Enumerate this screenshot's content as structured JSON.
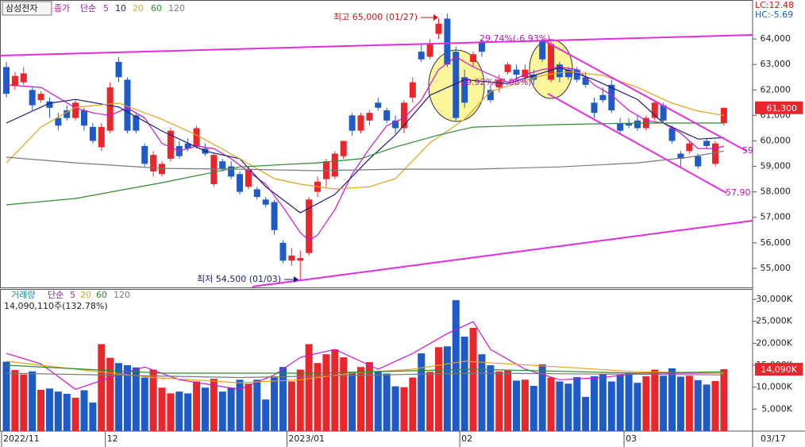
{
  "header": {
    "stock_name": "삼성전자",
    "lc": "LC:12.48",
    "hc": "HC:-5.69"
  },
  "x_axis_end_label": "03/17",
  "chart_data": [
    {
      "type": "candlestick",
      "legend_title": "종가",
      "ma_kind": "단순",
      "categories": [
        "2022/11",
        null,
        null,
        null,
        null,
        null,
        null,
        null,
        null,
        null,
        null,
        null,
        "12",
        null,
        null,
        null,
        null,
        null,
        null,
        null,
        null,
        null,
        null,
        null,
        null,
        null,
        null,
        null,
        null,
        null,
        null,
        null,
        null,
        "2023/01",
        null,
        null,
        null,
        null,
        null,
        null,
        null,
        null,
        null,
        null,
        null,
        null,
        null,
        null,
        null,
        null,
        null,
        null,
        null,
        "02",
        null,
        null,
        null,
        null,
        null,
        null,
        null,
        null,
        null,
        null,
        null,
        null,
        null,
        null,
        null,
        null,
        null,
        null,
        "03",
        null,
        null,
        null,
        null,
        null,
        null,
        null,
        null,
        null,
        null,
        null
      ],
      "open": [
        62900,
        62150,
        62300,
        62000,
        61600,
        61550,
        60900,
        61200,
        60900,
        61200,
        60550,
        59750,
        60400,
        63100,
        62400,
        61000,
        59800,
        58800,
        58700,
        59300,
        59800,
        59900,
        59800,
        59700,
        58300,
        59200,
        59000,
        58700,
        58200,
        58100,
        57700,
        57600,
        56000,
        55300,
        55300,
        55600,
        58000,
        58500,
        58600,
        59400,
        61000,
        60400,
        60800,
        61500,
        61200,
        60800,
        60500,
        61700,
        63500,
        63300,
        64200,
        64800,
        63500,
        62500,
        63100,
        63900,
        62000,
        62100,
        62700,
        62800,
        62500,
        62600,
        63900,
        62400,
        63000,
        62800,
        62800,
        62500,
        61500,
        61800,
        62200,
        60700,
        60700,
        60800,
        60500,
        60900,
        61400,
        60500,
        59500,
        59600,
        59400,
        60000,
        59100,
        60700
      ],
      "high": [
        63100,
        62700,
        62900,
        62100,
        61950,
        61700,
        61100,
        61400,
        61600,
        61300,
        60700,
        60700,
        62300,
        63300,
        62500,
        61100,
        59900,
        59600,
        59200,
        60500,
        60000,
        60100,
        60600,
        59900,
        59500,
        59300,
        59200,
        58800,
        59000,
        58200,
        57800,
        57700,
        56100,
        55800,
        55700,
        57800,
        58600,
        59300,
        59600,
        60000,
        61100,
        61100,
        61200,
        61700,
        61300,
        61000,
        61600,
        62500,
        63800,
        64000,
        64800,
        65000,
        63700,
        62800,
        63500,
        64000,
        62200,
        62600,
        63100,
        63000,
        63000,
        62800,
        64000,
        63900,
        63100,
        62900,
        62900,
        62700,
        61700,
        62100,
        62400,
        60900,
        60900,
        61000,
        61000,
        61600,
        61500,
        60600,
        59600,
        60000,
        59500,
        60100,
        60000,
        61300
      ],
      "low": [
        61700,
        62000,
        62200,
        61200,
        61500,
        60900,
        60400,
        60800,
        60800,
        60400,
        59900,
        59600,
        60300,
        62300,
        60300,
        60300,
        59000,
        58600,
        58600,
        59200,
        59300,
        59600,
        59700,
        59400,
        58200,
        58800,
        58500,
        57900,
        58100,
        57700,
        57400,
        56300,
        55200,
        55100,
        54500,
        55500,
        57800,
        58200,
        58500,
        59300,
        60200,
        60300,
        60600,
        61200,
        60700,
        60300,
        60300,
        61500,
        63100,
        63200,
        64000,
        62900,
        60800,
        61300,
        62900,
        63300,
        61500,
        61900,
        62600,
        62400,
        62300,
        62200,
        63100,
        62300,
        62300,
        62400,
        62300,
        62100,
        60900,
        61500,
        61100,
        60300,
        60500,
        60400,
        60400,
        60800,
        60700,
        59900,
        59000,
        59500,
        58900,
        59700,
        59000,
        60600
      ],
      "close": [
        61850,
        62550,
        62650,
        61400,
        61850,
        61300,
        60600,
        60900,
        61500,
        60600,
        60000,
        60550,
        62100,
        62500,
        60400,
        60400,
        59100,
        59450,
        59100,
        60400,
        59400,
        59700,
        60500,
        59500,
        59450,
        58900,
        58600,
        58000,
        58900,
        57800,
        57500,
        56500,
        55300,
        55500,
        55400,
        57700,
        58400,
        59200,
        59500,
        60000,
        60400,
        61000,
        61100,
        61300,
        60800,
        60500,
        61500,
        62300,
        63200,
        63800,
        64600,
        63000,
        60900,
        61500,
        63400,
        63500,
        61600,
        62400,
        63000,
        62600,
        62800,
        62400,
        63200,
        63800,
        62500,
        62500,
        62400,
        62200,
        61100,
        61600,
        61200,
        60400,
        60600,
        60500,
        60900,
        61500,
        60800,
        60000,
        59300,
        59900,
        59000,
        59800,
        59900,
        61300
      ],
      "up_color": "#e8262c",
      "down_color": "#1f5bc6",
      "ylim": [
        54250,
        65530
      ],
      "yticks": [
        {
          "value": 55000,
          "label": "55,000"
        },
        {
          "value": 56000,
          "label": "56,000"
        },
        {
          "value": 57000,
          "label": "57,000"
        },
        {
          "value": 58000,
          "label": "58,000"
        },
        {
          "value": 59000,
          "label": "59,000"
        },
        {
          "value": 60000,
          "label": "60,000"
        },
        {
          "value": 61000,
          "label": "61,000"
        },
        {
          "value": 62000,
          "label": "62,000"
        },
        {
          "value": 63000,
          "label": "63,000"
        },
        {
          "value": 64000,
          "label": "64,000"
        }
      ],
      "series": [
        {
          "name": "5",
          "color": "#d014d0",
          "x": [
            0,
            4,
            8,
            10,
            12,
            14,
            16,
            18,
            20,
            22,
            24,
            26,
            28,
            30,
            32,
            34,
            35,
            36,
            38,
            40,
            42,
            44,
            46,
            48,
            50,
            52,
            54,
            56,
            58,
            60,
            62,
            64,
            66,
            68,
            70,
            72,
            74,
            76,
            78,
            80,
            82,
            83
          ],
          "values": [
            62200,
            62100,
            61300,
            61100,
            61000,
            61300,
            60900,
            59900,
            59600,
            59800,
            59700,
            59300,
            58800,
            58300,
            57400,
            56400,
            56100,
            56300,
            57300,
            58700,
            59700,
            60600,
            60900,
            61600,
            62800,
            63300,
            62900,
            62600,
            62300,
            62600,
            62800,
            62900,
            62800,
            62200,
            61800,
            61200,
            60800,
            60700,
            60300,
            59700,
            59700,
            59800
          ]
        },
        {
          "name": "10",
          "color": "#1c1c7a",
          "x": [
            0,
            5,
            8,
            13,
            18,
            23,
            27,
            30,
            34,
            38,
            42,
            45,
            49,
            53,
            58,
            64,
            68,
            73,
            76,
            80,
            83
          ],
          "values": [
            60700,
            61480,
            61630,
            61330,
            60390,
            59600,
            59300,
            58200,
            57180,
            57900,
            59300,
            60230,
            61790,
            62400,
            62250,
            62880,
            62400,
            61630,
            60700,
            60070,
            60130
          ]
        },
        {
          "name": "20",
          "color": "#e6a11e",
          "x": [
            0,
            4,
            8,
            13,
            18,
            22,
            27,
            31,
            34,
            38,
            42,
            45,
            49,
            53,
            56,
            62,
            65,
            69,
            73,
            77,
            80,
            83
          ],
          "values": [
            59140,
            60540,
            61320,
            61480,
            60850,
            60230,
            59300,
            58520,
            58300,
            58110,
            58200,
            58520,
            59920,
            60850,
            61940,
            62570,
            62720,
            62570,
            62100,
            61480,
            61170,
            61000
          ]
        },
        {
          "name": "60",
          "color": "#2e8b2e",
          "x": [
            0,
            8,
            18,
            27,
            36,
            41,
            45,
            50,
            54,
            64,
            73,
            83
          ],
          "values": [
            57490,
            57740,
            58360,
            58980,
            59140,
            59300,
            59760,
            60230,
            60540,
            60640,
            60700,
            60700
          ]
        },
        {
          "name": "120",
          "color": "#7a7a7a",
          "x": [
            0,
            8,
            18,
            27,
            36,
            45,
            54,
            64,
            73,
            79,
            83
          ],
          "values": [
            59360,
            59140,
            58920,
            58890,
            58830,
            58890,
            58890,
            58980,
            59140,
            59360,
            59600
          ]
        }
      ],
      "current": {
        "value": 61300,
        "label": "61,300"
      },
      "annotations": {
        "high": "최고 65,000 (01/27)",
        "low": "최저 54,500 (01/03)",
        "range_1": "29.74%(-6.93%)",
        "range_2": "29.92%(-7.08%)",
        "line_1": "59",
        "line_2": "57,90"
      }
    },
    {
      "type": "bar",
      "title": "거래량",
      "ma_kind": "단순",
      "info": "14,090,110주(132.78%)",
      "values": [
        15800,
        13900,
        12900,
        13600,
        9400,
        9700,
        9000,
        8500,
        7600,
        9300,
        6500,
        19800,
        16700,
        15500,
        15000,
        14500,
        12200,
        14000,
        9900,
        8600,
        9000,
        8600,
        11300,
        9900,
        11900,
        9000,
        9900,
        11700,
        10800,
        11700,
        7200,
        12200,
        14600,
        11300,
        14000,
        19800,
        15500,
        17500,
        18600,
        16800,
        13500,
        14600,
        15700,
        13700,
        13100,
        10200,
        10000,
        12200,
        17700,
        13500,
        19100,
        19300,
        29800,
        21500,
        23500,
        17500,
        15000,
        13600,
        13800,
        11500,
        11700,
        10300,
        15200,
        12200,
        11300,
        10800,
        12300,
        7800,
        12500,
        13000,
        11300,
        12800,
        13200,
        11000,
        12500,
        14000,
        12600,
        14300,
        12400,
        12600,
        11600,
        10600,
        11400,
        14090
      ],
      "ylim": [
        0,
        32170
      ],
      "yticks": [
        {
          "value": 5000,
          "label": "5,000K"
        },
        {
          "value": 10000,
          "label": "10,000K"
        },
        {
          "value": 15000,
          "label": "15,000K"
        },
        {
          "value": 20000,
          "label": "20,000K"
        },
        {
          "value": 25000,
          "label": "25,000K"
        },
        {
          "value": 30000,
          "label": "30,000K"
        }
      ],
      "series": [
        {
          "name": "5",
          "color": "#d014d0",
          "x": [
            0,
            4,
            8,
            12,
            16,
            20,
            27,
            31,
            34,
            38,
            43,
            47,
            51,
            54,
            56,
            60,
            64,
            69,
            73,
            78,
            83
          ],
          "values": [
            17700,
            15300,
            9500,
            12200,
            14600,
            11700,
            9500,
            12800,
            16800,
            18600,
            14100,
            17700,
            22200,
            24900,
            18600,
            14100,
            11700,
            12200,
            13200,
            13200,
            13200
          ]
        },
        {
          "name": "20",
          "color": "#e6a11e",
          "x": [
            0,
            8,
            17,
            27,
            34,
            40,
            47,
            53,
            58,
            64,
            73,
            83
          ],
          "values": [
            15900,
            14100,
            12200,
            11000,
            11700,
            13200,
            14100,
            15900,
            15300,
            14600,
            13500,
            13200
          ]
        },
        {
          "name": "60",
          "color": "#2e8b2e",
          "x": [
            0,
            18,
            36,
            54,
            73,
            83
          ],
          "values": [
            15000,
            13200,
            13200,
            14100,
            13200,
            13500
          ]
        },
        {
          "name": "120",
          "color": "#7a7a7a",
          "x": [
            0,
            27,
            54,
            83
          ],
          "values": [
            13200,
            12200,
            13200,
            12800
          ]
        }
      ],
      "current": {
        "value": 14090,
        "label": "14,090K"
      }
    }
  ]
}
